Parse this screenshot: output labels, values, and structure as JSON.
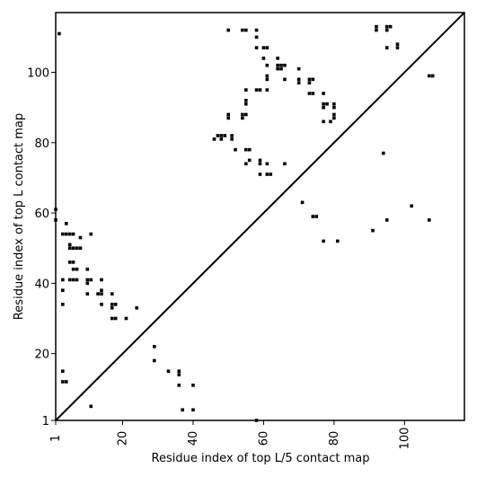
{
  "chart_data": {
    "type": "scatter",
    "title": "",
    "xlabel": "Residue index of top L/5 contact map",
    "ylabel": "Residue index of top L contact map",
    "xlim": [
      1,
      117
    ],
    "ylim": [
      1,
      117
    ],
    "xticks": [
      1,
      20,
      40,
      60,
      80,
      100
    ],
    "yticks": [
      1,
      20,
      40,
      60,
      80,
      100
    ],
    "diagonal": true,
    "marker_color": "#000000",
    "points_upper": [
      [
        46,
        81
      ],
      [
        47,
        82
      ],
      [
        48,
        82
      ],
      [
        48,
        81
      ],
      [
        49,
        82
      ],
      [
        51,
        82
      ],
      [
        51,
        81
      ],
      [
        50,
        88
      ],
      [
        50,
        87
      ],
      [
        52,
        78
      ],
      [
        54,
        88
      ],
      [
        54,
        87
      ],
      [
        55,
        88
      ],
      [
        55,
        95
      ],
      [
        55,
        92
      ],
      [
        55,
        91
      ],
      [
        55,
        78
      ],
      [
        56,
        78
      ],
      [
        55,
        74
      ],
      [
        56,
        75
      ],
      [
        58,
        95
      ],
      [
        59,
        95
      ],
      [
        59,
        75
      ],
      [
        59,
        74
      ],
      [
        59,
        71
      ],
      [
        61,
        95
      ],
      [
        61,
        74
      ],
      [
        61,
        71
      ],
      [
        62,
        71
      ],
      [
        66,
        74
      ],
      [
        50,
        112
      ],
      [
        54,
        112
      ],
      [
        55,
        112
      ],
      [
        58,
        112
      ],
      [
        58,
        110
      ],
      [
        58,
        107
      ],
      [
        60,
        104
      ],
      [
        60,
        107
      ],
      [
        61,
        107
      ],
      [
        61,
        102
      ],
      [
        61,
        99
      ],
      [
        61,
        98
      ],
      [
        64,
        104
      ],
      [
        64,
        102
      ],
      [
        65,
        102
      ],
      [
        65,
        101
      ],
      [
        64,
        101
      ],
      [
        66,
        102
      ],
      [
        66,
        98
      ],
      [
        70,
        101
      ],
      [
        70,
        98
      ],
      [
        70,
        97
      ],
      [
        73,
        98
      ],
      [
        73,
        97
      ],
      [
        74,
        98
      ],
      [
        73,
        94
      ],
      [
        74,
        94
      ],
      [
        77,
        94
      ],
      [
        77,
        91
      ],
      [
        77,
        90
      ],
      [
        78,
        91
      ],
      [
        80,
        91
      ],
      [
        80,
        90
      ],
      [
        80,
        88
      ],
      [
        80,
        87
      ],
      [
        77,
        86
      ],
      [
        79,
        86
      ],
      [
        92,
        113
      ],
      [
        92,
        112
      ],
      [
        95,
        113
      ],
      [
        96,
        113
      ],
      [
        95,
        112
      ],
      [
        95,
        107
      ],
      [
        98,
        108
      ],
      [
        98,
        107
      ],
      [
        107,
        99
      ],
      [
        108,
        99
      ],
      [
        94,
        77
      ],
      [
        71,
        63
      ],
      [
        74,
        59
      ],
      [
        75,
        59
      ],
      [
        77,
        52
      ],
      [
        81,
        52
      ],
      [
        91,
        55
      ],
      [
        95,
        58
      ],
      [
        102,
        62
      ],
      [
        107,
        58
      ]
    ],
    "points_lower": [
      [
        2,
        111
      ],
      [
        1,
        61
      ],
      [
        1,
        58
      ],
      [
        4,
        57
      ],
      [
        3,
        54
      ],
      [
        4,
        54
      ],
      [
        5,
        54
      ],
      [
        6,
        54
      ],
      [
        11,
        54
      ],
      [
        5,
        51
      ],
      [
        5,
        50
      ],
      [
        6,
        50
      ],
      [
        7,
        50
      ],
      [
        8,
        50
      ],
      [
        8,
        53
      ],
      [
        6,
        46
      ],
      [
        5,
        46
      ],
      [
        7,
        44
      ],
      [
        6,
        44
      ],
      [
        10,
        44
      ],
      [
        3,
        41
      ],
      [
        5,
        41
      ],
      [
        6,
        41
      ],
      [
        7,
        41
      ],
      [
        10,
        41
      ],
      [
        10,
        40
      ],
      [
        11,
        41
      ],
      [
        14,
        41
      ],
      [
        3,
        38
      ],
      [
        10,
        37
      ],
      [
        13,
        37
      ],
      [
        14,
        37
      ],
      [
        14,
        38
      ],
      [
        17,
        37
      ],
      [
        3,
        34
      ],
      [
        14,
        34
      ],
      [
        17,
        34
      ],
      [
        17,
        33
      ],
      [
        18,
        34
      ],
      [
        24,
        33
      ],
      [
        17,
        30
      ],
      [
        18,
        30
      ],
      [
        21,
        30
      ],
      [
        29,
        22
      ],
      [
        29,
        18
      ],
      [
        33,
        15
      ],
      [
        36,
        15
      ],
      [
        36,
        14
      ],
      [
        3,
        15
      ],
      [
        3,
        12
      ],
      [
        4,
        12
      ],
      [
        36,
        11
      ],
      [
        40,
        11
      ],
      [
        11,
        5
      ],
      [
        37,
        4
      ],
      [
        40,
        4
      ],
      [
        58,
        1
      ]
    ]
  }
}
